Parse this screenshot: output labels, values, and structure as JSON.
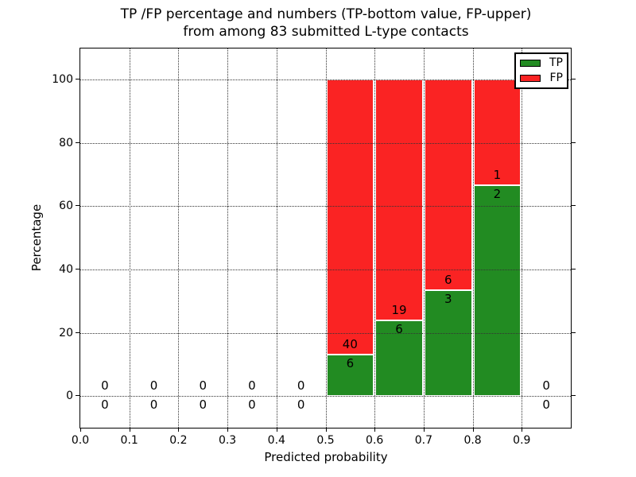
{
  "title": {
    "line1": "TP /FP percentage and numbers (TP-bottom value, FP-upper)",
    "line2": "from among 83 submitted L-type contacts"
  },
  "axes": {
    "xlabel": "Predicted probability",
    "ylabel": "Percentage",
    "xlim": [
      0.0,
      1.0
    ],
    "ylim": [
      -10,
      109.75
    ],
    "x_ticks": [
      {
        "label": "0.0",
        "value": 0.0
      },
      {
        "label": "0.1",
        "value": 0.1
      },
      {
        "label": "0.2",
        "value": 0.2
      },
      {
        "label": "0.3",
        "value": 0.3
      },
      {
        "label": "0.4",
        "value": 0.4
      },
      {
        "label": "0.5",
        "value": 0.5
      },
      {
        "label": "0.6",
        "value": 0.6
      },
      {
        "label": "0.7",
        "value": 0.7
      },
      {
        "label": "0.8",
        "value": 0.8
      },
      {
        "label": "0.9",
        "value": 0.9
      }
    ],
    "y_ticks": [
      {
        "label": "0",
        "value": 0
      },
      {
        "label": "20",
        "value": 20
      },
      {
        "label": "40",
        "value": 40
      },
      {
        "label": "60",
        "value": 60
      },
      {
        "label": "80",
        "value": 80
      },
      {
        "label": "100",
        "value": 100
      }
    ],
    "grid_style": "dotted",
    "grid_above_bars": true
  },
  "legend": {
    "position": "upper-right",
    "items": [
      {
        "label": "TP",
        "color": "#228b22"
      },
      {
        "label": "FP",
        "color": "#fa2323"
      }
    ]
  },
  "chart_data": {
    "type": "bar",
    "stacked": true,
    "title": "TP /FP percentage and numbers (TP-bottom value, FP-upper) from among 83 submitted L-type contacts",
    "xlabel": "Predicted probability",
    "ylabel": "Percentage",
    "total_submitted": 83,
    "x_bins": [
      [
        0.0,
        0.1
      ],
      [
        0.1,
        0.2
      ],
      [
        0.2,
        0.3
      ],
      [
        0.3,
        0.4
      ],
      [
        0.4,
        0.5
      ],
      [
        0.5,
        0.6
      ],
      [
        0.6,
        0.7
      ],
      [
        0.7,
        0.8
      ],
      [
        0.8,
        0.9
      ],
      [
        0.9,
        1.0
      ]
    ],
    "series": [
      {
        "name": "TP",
        "counts": [
          0,
          0,
          0,
          0,
          0,
          6,
          6,
          3,
          2,
          0
        ]
      },
      {
        "name": "FP",
        "counts": [
          0,
          0,
          0,
          0,
          0,
          40,
          19,
          6,
          1,
          0
        ]
      }
    ],
    "tp_percent_of_bin": [
      0,
      0,
      0,
      0,
      0,
      13.0,
      24.0,
      33.3,
      66.7,
      0
    ],
    "bar_total_percent": 100,
    "colors": {
      "tp": "#228b22",
      "fp": "#fa2323",
      "bar_edge": "#ffffff"
    }
  }
}
